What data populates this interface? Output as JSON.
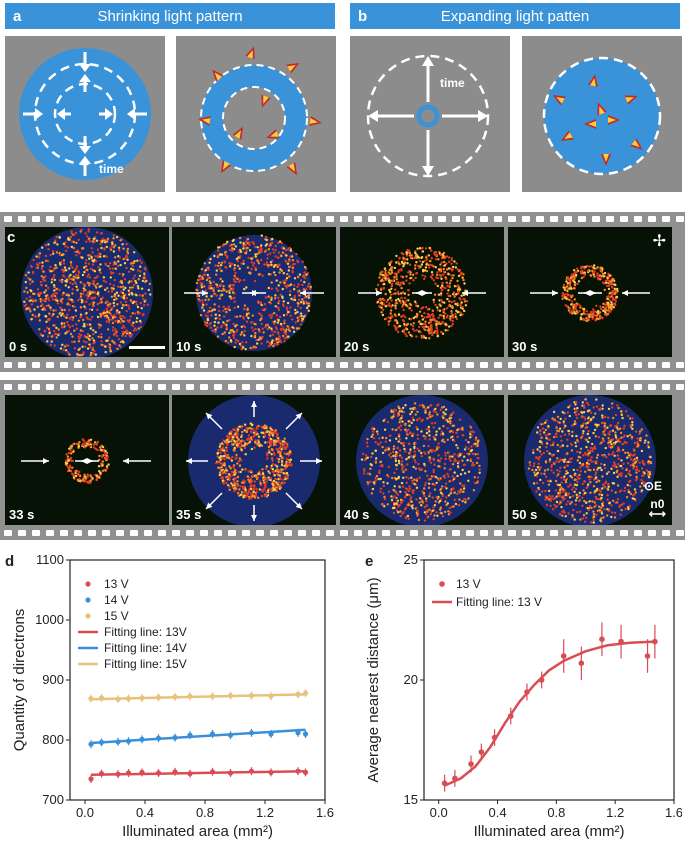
{
  "panel_a": {
    "label": "a",
    "title": "Shrinking light pattern",
    "time_label": "time"
  },
  "panel_b": {
    "label": "b",
    "title": "Expanding light patten",
    "time_label": "time"
  },
  "panel_c": {
    "label": "c",
    "row1": [
      "0 s",
      "10 s",
      "20 s",
      "30 s"
    ],
    "row2": [
      "33 s",
      "35 s",
      "40 s",
      "50 s"
    ],
    "e_label": "E",
    "n0_label": "n0"
  },
  "panel_d": {
    "label": "d",
    "chart_data": {
      "type": "scatter",
      "xlabel": "Illuminated area (mm²)",
      "ylabel": "Quantity of directrons",
      "xlim": [
        -0.1,
        1.6
      ],
      "ylim": [
        700,
        1100
      ],
      "xticks": [
        "0.0",
        "0.4",
        "0.8",
        "1.2",
        "1.6"
      ],
      "yticks": [
        "700",
        "800",
        "900",
        "1000",
        "1100"
      ],
      "x": [
        0.04,
        0.11,
        0.22,
        0.29,
        0.38,
        0.49,
        0.6,
        0.7,
        0.85,
        0.97,
        1.11,
        1.24,
        1.42,
        1.47
      ],
      "series": [
        {
          "name": "13 V",
          "color": "#d94c54",
          "values": [
            735,
            744,
            743,
            745,
            746,
            745,
            747,
            744,
            747,
            745,
            748,
            746,
            748,
            746
          ]
        },
        {
          "name": "14 V",
          "color": "#3a8fd8",
          "values": [
            793,
            796,
            797,
            798,
            801,
            803,
            804,
            808,
            810,
            808,
            812,
            810,
            812,
            810
          ]
        },
        {
          "name": "15 V",
          "color": "#e8c27a",
          "values": [
            869,
            870,
            868,
            869,
            870,
            871,
            872,
            873,
            873,
            874,
            874,
            873,
            876,
            878
          ]
        }
      ],
      "fits": [
        {
          "name": "Fitting line: 13V",
          "color": "#d94c54",
          "y": [
            742,
            748
          ]
        },
        {
          "name": "Fitting line: 14V",
          "color": "#3a8fd8",
          "y": [
            795,
            817
          ]
        },
        {
          "name": "Fitting line: 15V",
          "color": "#e8c27a",
          "y": [
            868,
            876
          ]
        }
      ],
      "legend": "top-left"
    }
  },
  "panel_e": {
    "label": "e",
    "chart_data": {
      "type": "scatter",
      "xlabel": "Illuminated area (mm²)",
      "ylabel": "Average nearest distance (μm)",
      "xlim": [
        -0.1,
        1.6
      ],
      "ylim": [
        15,
        25
      ],
      "xticks": [
        "0.0",
        "0.4",
        "0.8",
        "1.2",
        "1.6"
      ],
      "yticks": [
        "15",
        "20",
        "25"
      ],
      "series": [
        {
          "name": "13 V",
          "color": "#d94c54",
          "x": [
            0.04,
            0.11,
            0.22,
            0.29,
            0.38,
            0.49,
            0.6,
            0.7,
            0.85,
            0.97,
            1.11,
            1.24,
            1.42,
            1.47
          ],
          "values": [
            15.7,
            15.9,
            16.5,
            17.0,
            17.6,
            18.5,
            19.5,
            20.0,
            21.0,
            20.7,
            21.7,
            21.6,
            21.0,
            21.6
          ]
        }
      ],
      "fit": {
        "name": "Fitting line: 13 V",
        "color": "#d94c54",
        "x": [
          0.04,
          0.15,
          0.25,
          0.35,
          0.45,
          0.55,
          0.65,
          0.75,
          0.85,
          1.0,
          1.15,
          1.3,
          1.47
        ],
        "y": [
          15.6,
          15.9,
          16.4,
          17.2,
          18.2,
          19.1,
          19.8,
          20.4,
          20.8,
          21.2,
          21.45,
          21.55,
          21.6
        ]
      },
      "legend": "top-left"
    }
  }
}
